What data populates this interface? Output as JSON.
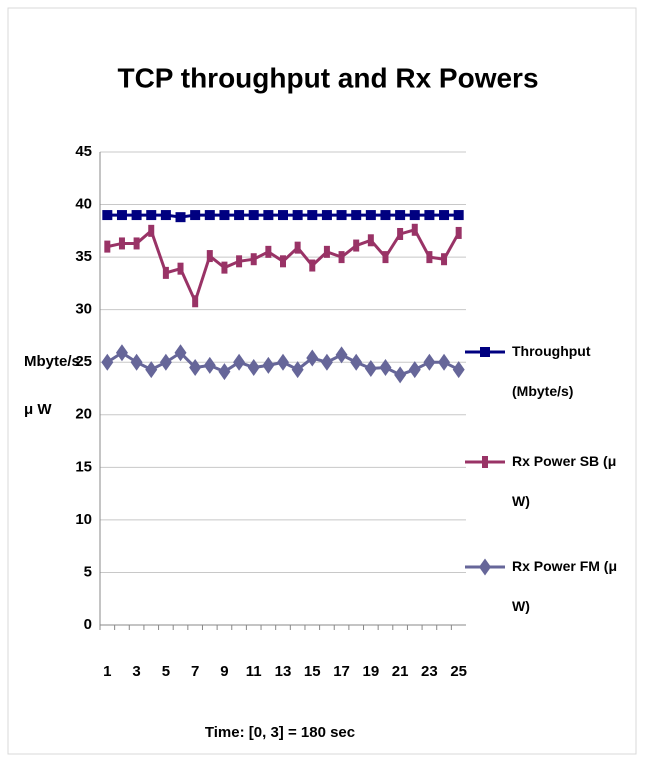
{
  "chart_data": {
    "type": "line",
    "title": "TCP throughput and Rx Powers",
    "ylabel": [
      "Mbyte/s",
      "μ W"
    ],
    "xlabel": "Time: [0, 3] = 180 sec",
    "categories": [
      1,
      null,
      3,
      null,
      5,
      null,
      7,
      null,
      9,
      null,
      11,
      null,
      13,
      null,
      15,
      null,
      17,
      null,
      19,
      null,
      21,
      null,
      23,
      null,
      25
    ],
    "series": [
      {
        "name": "Throughput (Mbyte/s)",
        "color": "#000080",
        "marker": "square",
        "values": [
          39,
          39,
          39,
          39,
          39,
          38.8,
          39,
          39,
          39,
          39,
          39,
          39,
          39,
          39,
          39,
          39,
          39,
          39,
          39,
          39,
          39,
          39,
          39,
          39,
          39
        ]
      },
      {
        "name": "Rx Power SB (μ W)",
        "color": "#993366",
        "marker": "dash",
        "values": [
          36,
          36.3,
          36.3,
          37.5,
          33.5,
          33.9,
          30.8,
          35.1,
          34,
          34.6,
          34.8,
          35.5,
          34.6,
          35.9,
          34.2,
          35.5,
          35,
          36.1,
          36.6,
          35,
          37.2,
          37.6,
          35,
          34.8,
          37.3
        ]
      },
      {
        "name": "Rx Power FM (μ W)",
        "color": "#666699",
        "marker": "diamond",
        "values": [
          25,
          25.9,
          25,
          24.3,
          25,
          25.9,
          24.5,
          24.7,
          24.1,
          25,
          24.5,
          24.7,
          25,
          24.3,
          25.4,
          25,
          25.7,
          25,
          24.4,
          24.5,
          23.8,
          24.3,
          25,
          25,
          24.3
        ]
      }
    ],
    "ylim": [
      0,
      45
    ],
    "yticks": [
      0,
      5,
      10,
      15,
      20,
      25,
      30,
      35,
      40,
      45
    ],
    "grid": true,
    "legend": "right"
  }
}
